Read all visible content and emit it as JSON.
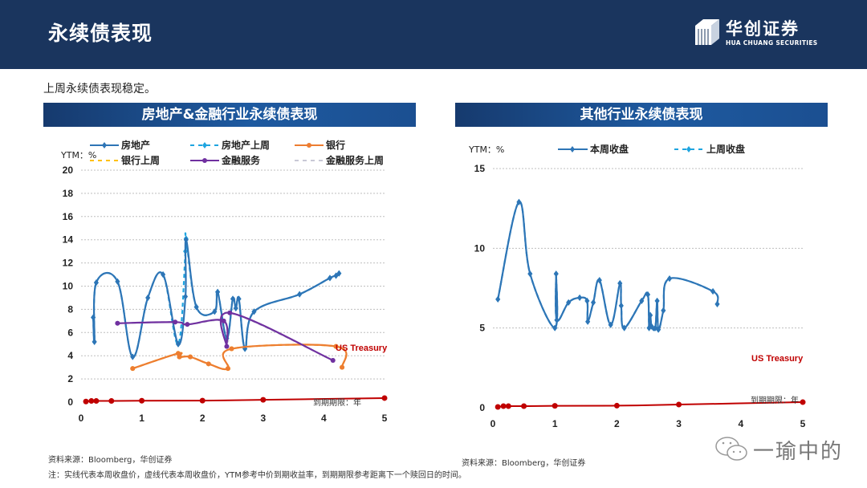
{
  "header": {
    "title": "永续债表现",
    "logo_cn": "华创证券",
    "logo_en": "HUA CHUANG SECURITIES"
  },
  "subtitle": "上周永续债表现稳定。",
  "left_panel": {
    "title": "房地产&金融行业永续债表现",
    "source": "资料来源：Bloomberg，华创证券"
  },
  "right_panel": {
    "title": "其他行业永续债表现",
    "source": "资料来源：Bloomberg，华创证券"
  },
  "note": "注：实线代表本周收盘价，虚线代表本周收盘价，YTM参考中价到期收益率，到期期限参考距离下一个赎回日的时间。",
  "watermark": "一瑜中的",
  "colors": {
    "header_bg": "#1a355e",
    "real_estate": "#2e75b6",
    "real_estate_last": "#1fa5e0",
    "bank": "#ed7d31",
    "bank_last": "#ffc000",
    "financial": "#7030a0",
    "financial_last": "#c9c9d6",
    "treasury": "#c00000"
  },
  "chart_data": [
    {
      "type": "line",
      "title": "房地产&金融行业永续债表现",
      "xlabel": "到期期限：年",
      "ylabel": "YTM：%",
      "xlim": [
        0,
        5
      ],
      "ylim": [
        0,
        20
      ],
      "xticks": [
        0,
        1,
        2,
        3,
        4,
        5
      ],
      "yticks": [
        0,
        2,
        4,
        6,
        8,
        10,
        12,
        14,
        16,
        18,
        20
      ],
      "grid": true,
      "legend_position": "top",
      "annotations": [
        "US Treasury",
        "到期期限：年"
      ],
      "series": [
        {
          "name": "房地产",
          "style": "solid",
          "color": "#2e75b6",
          "x": [
            0.2,
            0.22,
            0.25,
            0.6,
            0.85,
            1.1,
            1.35,
            1.6,
            1.72,
            1.73,
            1.9,
            2.2,
            2.25,
            2.4,
            2.5,
            2.55,
            2.6,
            2.7,
            2.85,
            3.6,
            4.1,
            4.2,
            4.25
          ],
          "y": [
            7.3,
            5.2,
            10.3,
            10.4,
            3.9,
            9.0,
            11.0,
            5.0,
            9.1,
            14.0,
            8.2,
            7.8,
            9.5,
            5.5,
            8.9,
            8.1,
            8.9,
            4.6,
            7.8,
            9.3,
            10.7,
            10.9,
            11.1
          ]
        },
        {
          "name": "房地产上周",
          "style": "dashed",
          "color": "#1fa5e0",
          "x": [
            0.2,
            0.22,
            0.25,
            0.6,
            0.85,
            1.1,
            1.35,
            1.6,
            1.72,
            1.73,
            1.9,
            2.2,
            2.25,
            2.4,
            2.5,
            2.55,
            2.6,
            2.7,
            2.85,
            3.6,
            4.1,
            4.2,
            4.25
          ],
          "y": [
            7.3,
            5.2,
            10.3,
            10.4,
            3.9,
            9.0,
            11.0,
            5.0,
            13.0,
            14.1,
            8.2,
            7.8,
            9.5,
            5.5,
            8.9,
            8.1,
            8.9,
            4.6,
            7.8,
            9.3,
            10.7,
            10.9,
            11.1
          ]
        },
        {
          "name": "银行",
          "style": "solid",
          "color": "#ed7d31",
          "x": [
            0.85,
            1.6,
            1.62,
            1.8,
            2.1,
            2.42,
            2.48,
            4.2,
            4.3
          ],
          "y": [
            2.9,
            4.2,
            3.9,
            3.9,
            3.3,
            2.9,
            4.6,
            4.8,
            3.0
          ]
        },
        {
          "name": "银行上周",
          "style": "dashed",
          "color": "#ffc000",
          "x": [
            0.85,
            1.6,
            1.62,
            1.8,
            2.1,
            2.42,
            2.48,
            4.2,
            4.3
          ],
          "y": [
            2.9,
            4.2,
            3.9,
            3.9,
            3.3,
            2.9,
            4.6,
            4.8,
            3.0
          ]
        },
        {
          "name": "金融服务",
          "style": "solid",
          "color": "#7030a0",
          "x": [
            0.6,
            1.55,
            1.75,
            2.35,
            2.4,
            2.45,
            4.15
          ],
          "y": [
            6.8,
            6.9,
            6.7,
            7.0,
            4.8,
            7.7,
            3.6
          ]
        },
        {
          "name": "金融服务上周",
          "style": "dashed",
          "color": "#c9c9d6",
          "x": [
            0.6,
            1.55,
            1.75,
            2.35,
            2.4,
            2.45,
            4.15
          ],
          "y": [
            6.8,
            6.9,
            6.7,
            7.0,
            5.3,
            7.7,
            3.6
          ]
        },
        {
          "name": "US Treasury",
          "style": "solid",
          "color": "#c00000",
          "x": [
            0.08,
            0.17,
            0.25,
            0.5,
            1,
            2,
            3,
            5
          ],
          "y": [
            0.05,
            0.1,
            0.1,
            0.1,
            0.12,
            0.13,
            0.2,
            0.35
          ]
        }
      ]
    },
    {
      "type": "line",
      "title": "其他行业永续债表现",
      "xlabel": "到期期限：年",
      "ylabel": "YTM：%",
      "xlim": [
        0,
        5
      ],
      "ylim": [
        0,
        15
      ],
      "xticks": [
        0,
        1,
        2,
        3,
        4,
        5
      ],
      "yticks": [
        0,
        5,
        10,
        15
      ],
      "grid": true,
      "legend_position": "top",
      "annotations": [
        "US Treasury",
        "到期期限：年"
      ],
      "series": [
        {
          "name": "本周收盘",
          "style": "solid",
          "color": "#2e75b6",
          "x": [
            0.08,
            0.42,
            0.6,
            1.0,
            1.02,
            1.03,
            1.22,
            1.4,
            1.52,
            1.53,
            1.62,
            1.72,
            1.9,
            2.05,
            2.07,
            2.12,
            2.4,
            2.5,
            2.52,
            2.54,
            2.56,
            2.62,
            2.65,
            2.67,
            2.75,
            2.85,
            3.55,
            3.62
          ],
          "y": [
            6.8,
            12.9,
            8.4,
            5.0,
            8.4,
            5.5,
            6.6,
            6.9,
            6.7,
            5.4,
            6.6,
            8.0,
            5.2,
            7.8,
            6.4,
            5.0,
            6.7,
            7.1,
            5.0,
            5.8,
            5.1,
            5.0,
            6.7,
            4.9,
            6.1,
            8.1,
            7.3,
            6.5
          ]
        },
        {
          "name": "上周收盘",
          "style": "dashed",
          "color": "#1fa5e0",
          "x": [
            0.08,
            0.42,
            0.6,
            1.0,
            1.02,
            1.03,
            1.22,
            1.4,
            1.52,
            1.53,
            1.62,
            1.72,
            1.9,
            2.05,
            2.07,
            2.12,
            2.4,
            2.5,
            2.52,
            2.54,
            2.56,
            2.62,
            2.65,
            2.67,
            2.75,
            2.85,
            3.55,
            3.62
          ],
          "y": [
            6.8,
            12.9,
            8.4,
            5.0,
            8.4,
            5.5,
            6.6,
            6.9,
            6.7,
            5.4,
            6.6,
            8.0,
            5.2,
            7.8,
            6.4,
            5.0,
            6.7,
            7.1,
            5.0,
            5.8,
            5.1,
            5.0,
            6.7,
            4.9,
            6.1,
            8.1,
            7.3,
            6.5
          ]
        },
        {
          "name": "US Treasury",
          "style": "solid",
          "color": "#c00000",
          "x": [
            0.08,
            0.17,
            0.25,
            0.5,
            1,
            2,
            3,
            5
          ],
          "y": [
            0.05,
            0.1,
            0.1,
            0.1,
            0.12,
            0.13,
            0.2,
            0.35
          ]
        }
      ]
    }
  ]
}
